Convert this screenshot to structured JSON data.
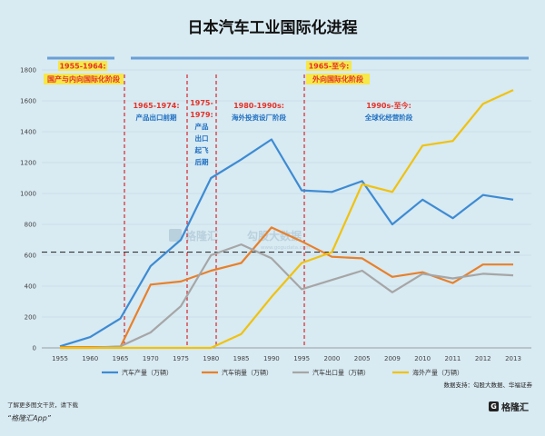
{
  "chart_data": {
    "type": "line",
    "title": "日本汽车工业国际化进程",
    "x": [
      "1955",
      "1960",
      "1965",
      "1970",
      "1975",
      "1980",
      "1985",
      "1990",
      "1995",
      "2000",
      "2005",
      "2009",
      "2010",
      "2011",
      "2012",
      "2013"
    ],
    "ylim": [
      0,
      1800
    ],
    "yticks": [
      0,
      200,
      400,
      600,
      800,
      1000,
      1200,
      1400,
      1600,
      1800
    ],
    "series": [
      {
        "name": "汽车产量（万辆）",
        "color": "#3d8bd3",
        "values": [
          10,
          70,
          190,
          530,
          700,
          1100,
          1220,
          1350,
          1020,
          1010,
          1080,
          800,
          960,
          840,
          990,
          960
        ]
      },
      {
        "name": "汽车销量（万辆）",
        "color": "#e8802a",
        "values": [
          5,
          5,
          5,
          410,
          430,
          500,
          550,
          780,
          690,
          590,
          580,
          460,
          490,
          420,
          540,
          540
        ]
      },
      {
        "name": "汽车出口量（万辆）",
        "color": "#a6a6a6",
        "values": [
          0,
          0,
          10,
          100,
          270,
          600,
          670,
          580,
          380,
          440,
          500,
          360,
          480,
          450,
          480,
          470
        ]
      },
      {
        "name": "海外产量（万辆）",
        "color": "#f0c20e",
        "values": [
          0,
          0,
          0,
          0,
          0,
          0,
          90,
          330,
          550,
          620,
          1060,
          1010,
          1310,
          1340,
          1580,
          1670
        ]
      }
    ],
    "reference_line": 620,
    "phases": [
      {
        "period": "1955-1964:",
        "desc": "国产与内向国际化阶段"
      },
      {
        "period": "1965-1974:",
        "desc": "产品出口前期"
      },
      {
        "period": "1975-1979:",
        "desc": "产品出口起飞后期"
      },
      {
        "period": "1980-1990s:",
        "desc": "海外投资设厂阶段"
      },
      {
        "period": "1965-至今:",
        "desc": "外向国际化阶段"
      },
      {
        "period": "1990s-至今:",
        "desc": "全球化经营阶段"
      }
    ],
    "source": "数据支持：勾股大数据、华福证券",
    "watermark": "格隆汇  勾股大数据  www.gogudata.com"
  },
  "footer": {
    "line1": "了解更多图文干货，请下载",
    "line2": "“格隆汇App”",
    "logo": "格隆汇"
  }
}
